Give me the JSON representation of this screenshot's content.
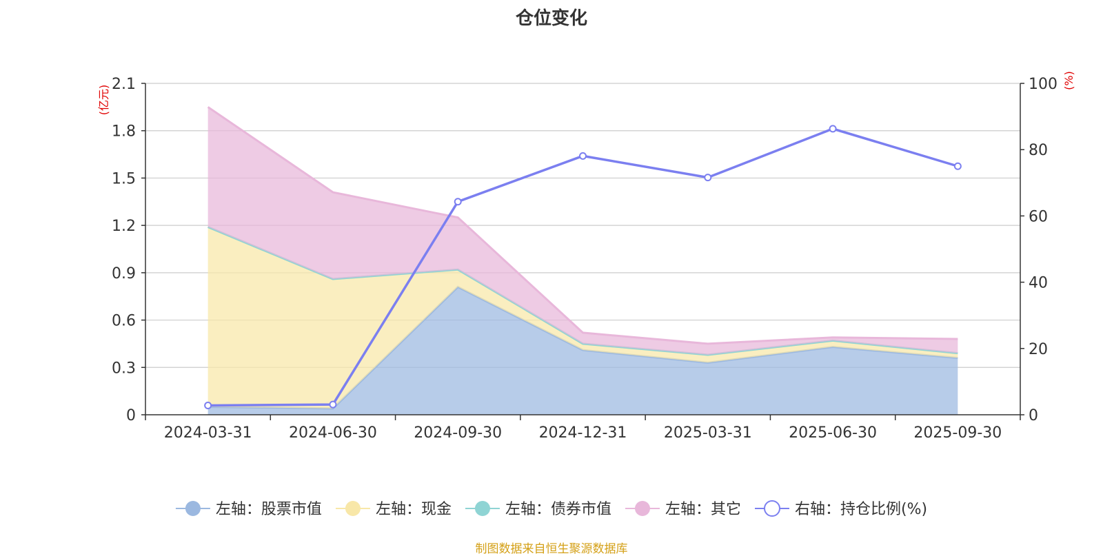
{
  "chart_data": {
    "type": "area",
    "title": "仓位变化",
    "categories": [
      "2024-03-31",
      "2024-06-30",
      "2024-09-30",
      "2024-12-31",
      "2025-03-31",
      "2025-06-30",
      "2025-09-30"
    ],
    "left_axis": {
      "unit": "(亿元)",
      "ylim": [
        0,
        2.1
      ],
      "ticks": [
        "0",
        "0.3",
        "0.6",
        "0.9",
        "1.2",
        "1.5",
        "1.8",
        "2.1"
      ],
      "tick_values": [
        0,
        0.3,
        0.6,
        0.9,
        1.2,
        1.5,
        1.8,
        2.1
      ]
    },
    "right_axis": {
      "unit": "(%)",
      "ylim": [
        0,
        100
      ],
      "ticks": [
        "0",
        "20",
        "40",
        "60",
        "80",
        "100"
      ],
      "tick_values": [
        0,
        20,
        40,
        60,
        80,
        100
      ]
    },
    "stacked": true,
    "series": [
      {
        "name": "左轴：股票市值",
        "axis": "left",
        "kind": "area",
        "color": "#9bb8e0",
        "values": [
          0.05,
          0.04,
          0.81,
          0.41,
          0.33,
          0.43,
          0.36
        ]
      },
      {
        "name": "左轴：现金",
        "axis": "left",
        "kind": "area",
        "color": "#f8e7a8",
        "values": [
          1.14,
          0.82,
          0.11,
          0.04,
          0.05,
          0.04,
          0.03
        ]
      },
      {
        "name": "左轴：债券市值",
        "axis": "left",
        "kind": "area",
        "color": "#8fd4d4",
        "values": [
          0,
          0,
          0,
          0,
          0,
          0,
          0
        ]
      },
      {
        "name": "左轴：其它",
        "axis": "left",
        "kind": "area",
        "color": "#e8b7da",
        "values": [
          0.76,
          0.55,
          0.33,
          0.07,
          0.07,
          0.02,
          0.09
        ]
      },
      {
        "name": "右轴：持仓比例(%)",
        "axis": "right",
        "kind": "line",
        "color": "#7b7ff0",
        "values": [
          2.8,
          3.1,
          64.3,
          78.1,
          71.6,
          86.3,
          75.0
        ]
      }
    ]
  },
  "source": "制图数据来自恒生聚源数据库"
}
